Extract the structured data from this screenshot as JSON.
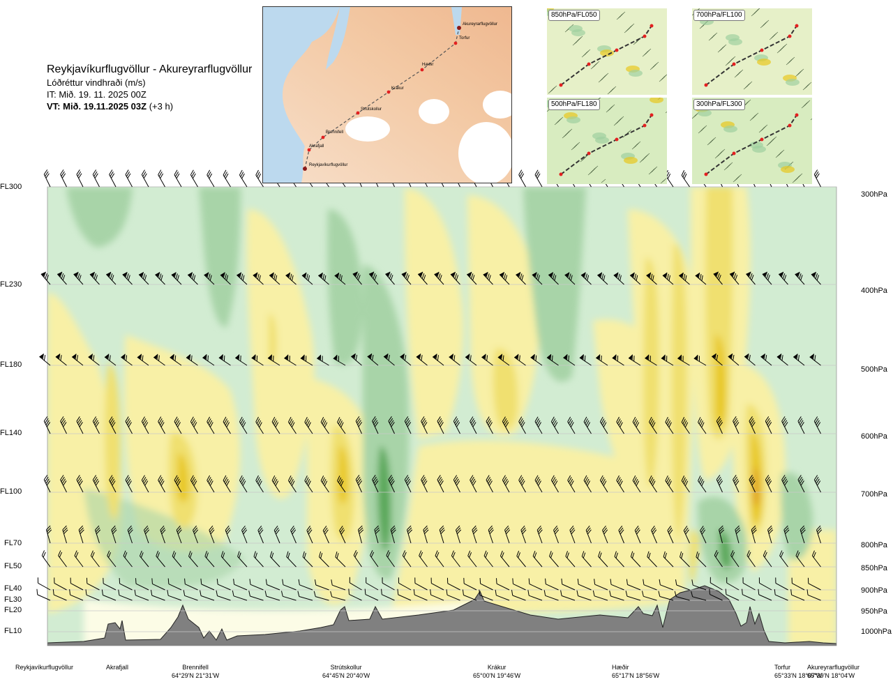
{
  "header": {
    "route": "Reykjavíkurflugvöllur - Akureyrarflugvöllur",
    "variable": "Lóðréttur vindhraði (m/s)",
    "it": "IT: Mið. 19. 11. 2025 00Z",
    "vt_bold": "VT: Mið. 19.11.2025 03Z",
    "vt_plus": "(+3 h)"
  },
  "route_map": {
    "labels": [
      "Akureyrarflugvöllur",
      "Torfur",
      "Hæðir",
      "Krákur",
      "Strútskollur",
      "Brennifell",
      "Akrafjall",
      "Reykjavíkurflugvöllur"
    ]
  },
  "mini_maps": [
    {
      "label": "850hPa/FL050"
    },
    {
      "label": "700hPa/FL100"
    },
    {
      "label": "500hPa/FL180"
    },
    {
      "label": "300hPa/FL300"
    }
  ],
  "levels_left": [
    "FL300",
    "FL230",
    "FL180",
    "FL140",
    "FL100",
    "FL70",
    "FL50",
    "FL40",
    "FL30",
    "FL20",
    "FL10"
  ],
  "levels_right": [
    "300hPa",
    "400hPa",
    "500hPa",
    "600hPa",
    "700hPa",
    "800hPa",
    "850hPa",
    "900hPa",
    "950hPa",
    "1000hPa"
  ],
  "stations": [
    {
      "name": "Reykjavíkurflugvöllur",
      "coord": ""
    },
    {
      "name": "Akrafjall",
      "coord": ""
    },
    {
      "name": "Brennifell",
      "coord": "64°29'N 21°31'W"
    },
    {
      "name": "Strútskollur",
      "coord": "64°45'N 20°40'W"
    },
    {
      "name": "Krákur",
      "coord": "65°00'N 19°46'W"
    },
    {
      "name": "Hæðir",
      "coord": "65°17'N 18°56'W"
    },
    {
      "name": "Torfur",
      "coord": "65°33'N 18°07'W"
    },
    {
      "name": "Akureyrarflugvöllur",
      "coord": "65°39'N 18°04'W"
    }
  ],
  "colors": {
    "strong_down": "#5aa85a",
    "moderate_down": "#a8d4a8",
    "weak_down": "#d2ecd2",
    "near_zero": "#fcfce6",
    "weak_up": "#f8f0a6",
    "moderate_up": "#f0e070",
    "strong_up": "#e8c820",
    "very_strong_up": "#e0a020",
    "terrain": "#808080"
  },
  "chart_data": {
    "type": "heatmap",
    "title": "Reykjavíkurflugvöllur - Akureyrarflugvöllur",
    "variable": "Lóðréttur vindhraði (m/s)",
    "x_axis": "route (stations)",
    "y_axis": "pressure (hPa)",
    "ylim_hpa": [
      1000,
      300
    ],
    "vertical_motion_features": [
      {
        "near": "Akrafjall",
        "levels_hpa": [
          700,
          500
        ],
        "sign": "up",
        "strength": "moderate"
      },
      {
        "near": "Brennifell",
        "levels_hpa": [
          800,
          600
        ],
        "sign": "up",
        "strength": "strong"
      },
      {
        "near": "Strútskollur",
        "levels_hpa": [
          800,
          600
        ],
        "sign": "up",
        "strength": "strong"
      },
      {
        "near": "Strútskollur-Krákur",
        "levels_hpa": [
          850,
          600
        ],
        "sign": "down",
        "strength": "strong"
      },
      {
        "near": "Krákur",
        "levels_hpa": [
          600,
          450
        ],
        "sign": "up",
        "strength": "strong"
      },
      {
        "near": "Hæðir-Torfur",
        "levels_hpa": [
          600,
          300
        ],
        "sign": "up",
        "strength": "very strong"
      },
      {
        "near": "Torfur",
        "levels_hpa": [
          800,
          600
        ],
        "sign": "up",
        "strength": "very strong"
      },
      {
        "near": "Hæðir-Torfur",
        "levels_hpa": [
          850,
          800
        ],
        "sign": "down",
        "strength": "strong"
      }
    ]
  }
}
